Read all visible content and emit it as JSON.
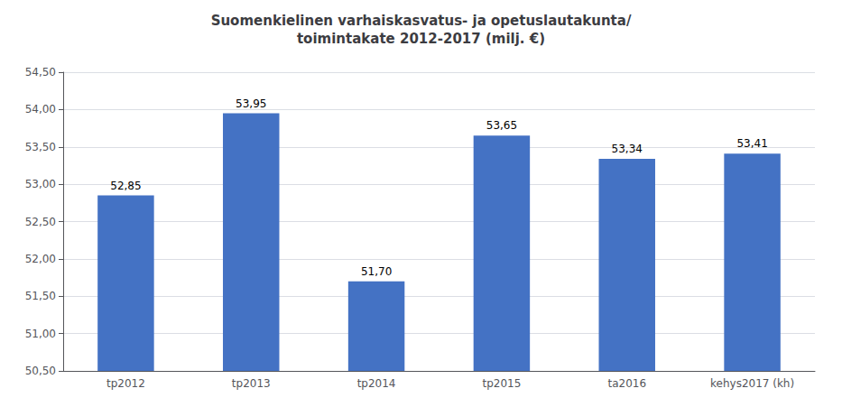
{
  "chart_data": {
    "type": "bar",
    "title": "Suomenkielinen varhaiskasvatus- ja opetuslautakunta/\ntoimintakate 2012-2017 (milj. €)",
    "categories": [
      "tp2012",
      "tp2013",
      "tp2014",
      "tp2015",
      "ta2016",
      "kehys2017 (kh)"
    ],
    "values": [
      52.85,
      53.95,
      51.7,
      53.65,
      53.34,
      53.41
    ],
    "value_labels": [
      "52,85",
      "53,95",
      "51,70",
      "53,65",
      "53,34",
      "53,41"
    ],
    "data_labels": true,
    "color": "#4472C4",
    "ylim": [
      50.5,
      54.5
    ],
    "yticks": [
      {
        "value": 50.5,
        "label": "50,50"
      },
      {
        "value": 51.0,
        "label": "51,00"
      },
      {
        "value": 51.5,
        "label": "51,50"
      },
      {
        "value": 52.0,
        "label": "52,00"
      },
      {
        "value": 52.5,
        "label": "52,50"
      },
      {
        "value": 53.0,
        "label": "53,00"
      },
      {
        "value": 53.5,
        "label": "53,50"
      },
      {
        "value": 54.0,
        "label": "54,00"
      },
      {
        "value": 54.5,
        "label": "54,50"
      }
    ],
    "grid": true
  }
}
